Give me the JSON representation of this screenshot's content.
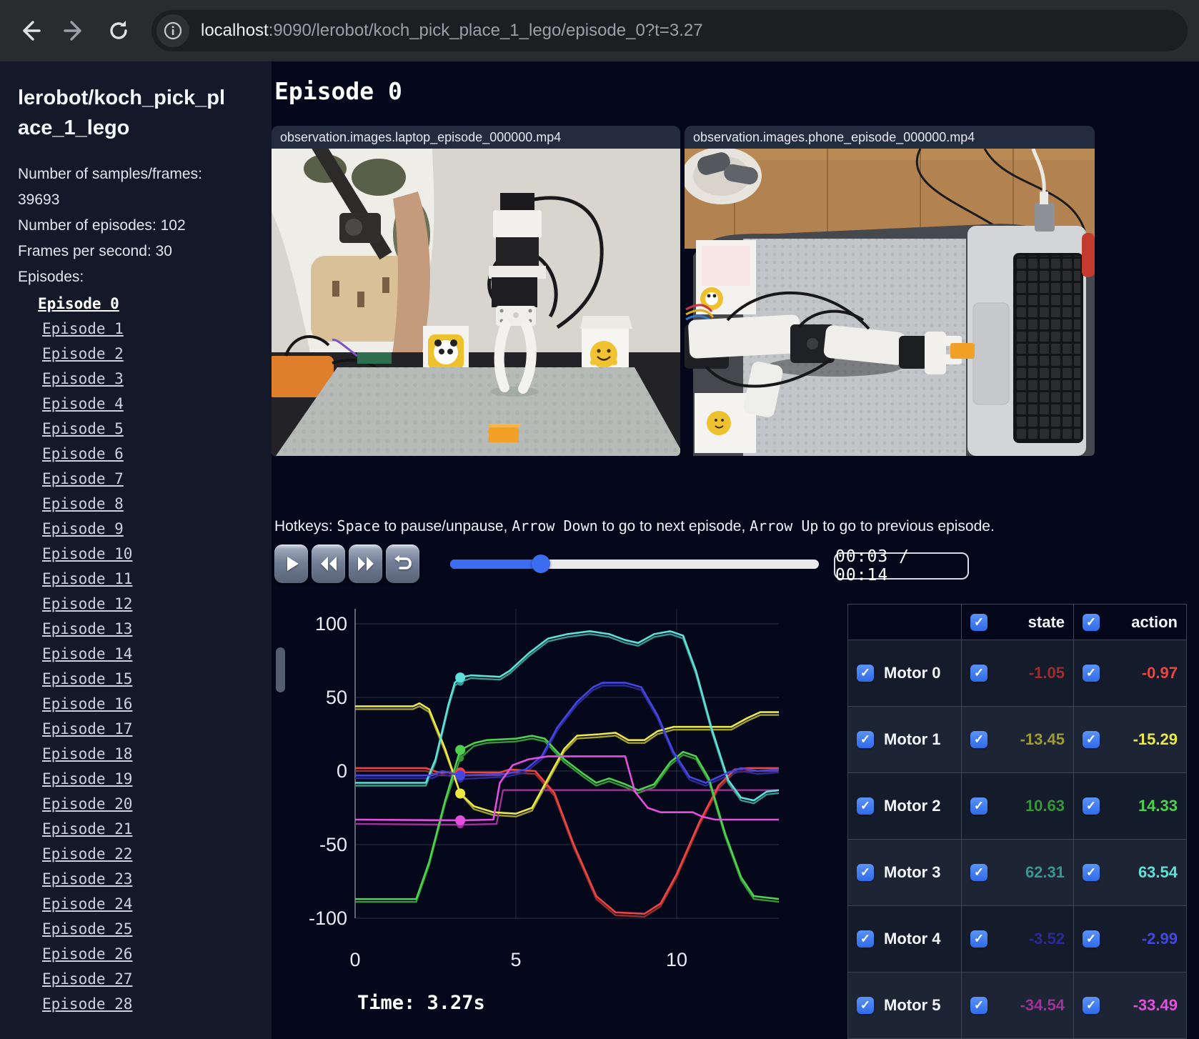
{
  "browser": {
    "url_host": "localhost",
    "url_rest": ":9090/lerobot/koch_pick_place_1_lego/episode_0?t=3.27"
  },
  "sidebar": {
    "title": "lerobot/koch_pick_place_1_lego",
    "info_lines": [
      "Number of samples/frames: 39693",
      "Number of episodes: 102",
      "Frames per second: 30",
      "Episodes:"
    ],
    "active_episode": 0,
    "episodes": [
      "Episode 0",
      "Episode 1",
      "Episode 2",
      "Episode 3",
      "Episode 4",
      "Episode 5",
      "Episode 6",
      "Episode 7",
      "Episode 8",
      "Episode 9",
      "Episode 10",
      "Episode 11",
      "Episode 12",
      "Episode 13",
      "Episode 14",
      "Episode 15",
      "Episode 16",
      "Episode 17",
      "Episode 18",
      "Episode 19",
      "Episode 20",
      "Episode 21",
      "Episode 22",
      "Episode 23",
      "Episode 24",
      "Episode 25",
      "Episode 26",
      "Episode 27",
      "Episode 28"
    ]
  },
  "main": {
    "heading": "Episode 0",
    "videos": [
      {
        "caption": "observation.images.laptop_episode_000000.mp4"
      },
      {
        "caption": "observation.images.phone_episode_000000.mp4"
      }
    ],
    "hotkeys_segments": [
      {
        "text": "Hotkeys: ",
        "mono": false
      },
      {
        "text": "Space",
        "mono": true
      },
      {
        "text": " to pause/unpause, ",
        "mono": false
      },
      {
        "text": "Arrow Down",
        "mono": true
      },
      {
        "text": " to go to next episode, ",
        "mono": false
      },
      {
        "text": "Arrow Up",
        "mono": true
      },
      {
        "text": " to go to previous episode.",
        "mono": false
      }
    ],
    "time_display": "00:03 / 00:14",
    "current_time_label": "Time: 3.27s"
  },
  "table": {
    "headers": [
      "state",
      "action"
    ],
    "rows": [
      {
        "name": "Motor 0",
        "state": "-1.05",
        "action": "-0.97",
        "state_color": "#9c2e2e",
        "action_color": "#ee4444"
      },
      {
        "name": "Motor 1",
        "state": "-13.45",
        "action": "-15.29",
        "state_color": "#a09d30",
        "action_color": "#ece944"
      },
      {
        "name": "Motor 2",
        "state": "10.63",
        "action": "14.33",
        "state_color": "#379637",
        "action_color": "#4cd24c"
      },
      {
        "name": "Motor 3",
        "state": "62.31",
        "action": "63.54",
        "state_color": "#3a968f",
        "action_color": "#5fe0d8"
      },
      {
        "name": "Motor 4",
        "state": "-3.52",
        "action": "-2.99",
        "state_color": "#2b2b98",
        "action_color": "#4545e0"
      },
      {
        "name": "Motor 5",
        "state": "-34.54",
        "action": "-33.49",
        "state_color": "#9c3398",
        "action_color": "#e44fe0"
      }
    ]
  },
  "chart_data": {
    "type": "line",
    "title": "",
    "xlabel": "",
    "ylabel": "",
    "x_ticks": [
      0,
      5,
      10
    ],
    "y_ticks": [
      100,
      50,
      0,
      -50,
      -100
    ],
    "xlim": [
      0,
      13.2
    ],
    "ylim": [
      -100,
      100
    ],
    "grid": true,
    "legend_position": "none",
    "current_time": 3.27,
    "motors": [
      {
        "name": "Motor 0",
        "state_color": "#9c2e2e",
        "action_color": "#ee4444",
        "action_points": [
          [
            0,
            2
          ],
          [
            2.2,
            2
          ],
          [
            2.6,
            -1
          ],
          [
            3.27,
            -0.97
          ],
          [
            4.5,
            -1
          ],
          [
            4.8,
            1
          ],
          [
            5.6,
            0
          ],
          [
            6.2,
            -15
          ],
          [
            6.8,
            -50
          ],
          [
            7.5,
            -85
          ],
          [
            8.1,
            -96
          ],
          [
            9.0,
            -97
          ],
          [
            9.5,
            -90
          ],
          [
            10.0,
            -70
          ],
          [
            10.7,
            -35
          ],
          [
            11.3,
            -10
          ],
          [
            11.8,
            1
          ],
          [
            12.2,
            2
          ],
          [
            13.2,
            2
          ]
        ],
        "state_points": [
          [
            0,
            2
          ],
          [
            2.2,
            2
          ],
          [
            2.6,
            -1
          ],
          [
            3.27,
            -1.05
          ],
          [
            4.5,
            -1
          ],
          [
            4.8,
            1
          ],
          [
            5.6,
            0
          ],
          [
            6.2,
            -15
          ],
          [
            6.8,
            -50
          ],
          [
            7.5,
            -85
          ],
          [
            8.1,
            -96
          ],
          [
            9.0,
            -97
          ],
          [
            9.5,
            -90
          ],
          [
            10.0,
            -70
          ],
          [
            10.7,
            -35
          ],
          [
            11.3,
            -10
          ],
          [
            11.8,
            1
          ],
          [
            12.2,
            2
          ],
          [
            13.2,
            2
          ]
        ]
      },
      {
        "name": "Motor 1",
        "state_color": "#a09d30",
        "action_color": "#ece944",
        "action_points": [
          [
            0,
            44
          ],
          [
            1.8,
            44
          ],
          [
            2.0,
            46
          ],
          [
            2.3,
            42
          ],
          [
            2.8,
            15
          ],
          [
            3.27,
            -15.29
          ],
          [
            3.7,
            -24
          ],
          [
            4.3,
            -28
          ],
          [
            5.0,
            -29
          ],
          [
            5.5,
            -25
          ],
          [
            6.0,
            -5
          ],
          [
            6.5,
            15
          ],
          [
            6.9,
            24
          ],
          [
            7.6,
            25
          ],
          [
            8.1,
            26
          ],
          [
            8.5,
            21
          ],
          [
            9.0,
            21
          ],
          [
            9.4,
            27
          ],
          [
            9.9,
            30
          ],
          [
            11.7,
            30
          ],
          [
            12.2,
            36
          ],
          [
            12.6,
            40
          ],
          [
            13.2,
            40
          ]
        ],
        "state_points": [
          [
            0,
            44
          ],
          [
            1.8,
            44
          ],
          [
            2.0,
            46
          ],
          [
            2.3,
            42
          ],
          [
            2.8,
            15
          ],
          [
            3.27,
            -13.45
          ],
          [
            3.7,
            -24
          ],
          [
            4.3,
            -28
          ],
          [
            5.0,
            -29
          ],
          [
            5.5,
            -25
          ],
          [
            6.0,
            -5
          ],
          [
            6.5,
            15
          ],
          [
            6.9,
            24
          ],
          [
            7.6,
            25
          ],
          [
            8.1,
            26
          ],
          [
            8.5,
            21
          ],
          [
            9.0,
            21
          ],
          [
            9.4,
            27
          ],
          [
            9.9,
            30
          ],
          [
            11.7,
            30
          ],
          [
            12.2,
            36
          ],
          [
            12.6,
            40
          ],
          [
            13.2,
            40
          ]
        ]
      },
      {
        "name": "Motor 2",
        "state_color": "#379637",
        "action_color": "#4cd24c",
        "action_points": [
          [
            0,
            -87
          ],
          [
            1.9,
            -87
          ],
          [
            2.3,
            -62
          ],
          [
            2.8,
            -20
          ],
          [
            3.27,
            14.33
          ],
          [
            3.7,
            19
          ],
          [
            4.1,
            21
          ],
          [
            5.0,
            22
          ],
          [
            5.5,
            24
          ],
          [
            5.9,
            22
          ],
          [
            6.5,
            8
          ],
          [
            7.1,
            -2
          ],
          [
            7.5,
            -8
          ],
          [
            7.9,
            -5
          ],
          [
            8.4,
            -9
          ],
          [
            8.8,
            -13
          ],
          [
            9.3,
            -9
          ],
          [
            9.8,
            6
          ],
          [
            10.2,
            13
          ],
          [
            10.6,
            10
          ],
          [
            11.0,
            -5
          ],
          [
            11.5,
            -42
          ],
          [
            12.0,
            -72
          ],
          [
            12.4,
            -85
          ],
          [
            13.2,
            -87
          ]
        ],
        "state_points": [
          [
            0,
            -87
          ],
          [
            1.9,
            -87
          ],
          [
            2.3,
            -62
          ],
          [
            2.8,
            -20
          ],
          [
            3.27,
            10.63
          ],
          [
            3.7,
            19
          ],
          [
            4.1,
            21
          ],
          [
            5.0,
            22
          ],
          [
            5.5,
            24
          ],
          [
            5.9,
            22
          ],
          [
            6.5,
            8
          ],
          [
            7.1,
            -2
          ],
          [
            7.5,
            -8
          ],
          [
            7.9,
            -5
          ],
          [
            8.4,
            -9
          ],
          [
            8.8,
            -13
          ],
          [
            9.3,
            -9
          ],
          [
            9.8,
            6
          ],
          [
            10.2,
            13
          ],
          [
            10.6,
            10
          ],
          [
            11.0,
            -5
          ],
          [
            11.5,
            -42
          ],
          [
            12.0,
            -72
          ],
          [
            12.4,
            -85
          ],
          [
            13.2,
            -87
          ]
        ]
      },
      {
        "name": "Motor 3",
        "state_color": "#3a968f",
        "action_color": "#5fe0d8",
        "action_points": [
          [
            0,
            -8
          ],
          [
            2.2,
            -8
          ],
          [
            2.5,
            8
          ],
          [
            2.9,
            45
          ],
          [
            3.1,
            60
          ],
          [
            3.27,
            63.54
          ],
          [
            3.6,
            65
          ],
          [
            4.5,
            64
          ],
          [
            4.8,
            68
          ],
          [
            5.4,
            80
          ],
          [
            6.0,
            90
          ],
          [
            6.6,
            93
          ],
          [
            7.3,
            95
          ],
          [
            7.9,
            93
          ],
          [
            8.4,
            89
          ],
          [
            8.8,
            87
          ],
          [
            9.3,
            93
          ],
          [
            9.8,
            95
          ],
          [
            10.2,
            92
          ],
          [
            10.6,
            68
          ],
          [
            11.1,
            28
          ],
          [
            11.6,
            -6
          ],
          [
            12.0,
            -18
          ],
          [
            12.4,
            -20
          ],
          [
            12.8,
            -14
          ],
          [
            13.2,
            -13
          ]
        ],
        "state_points": [
          [
            0,
            -8
          ],
          [
            2.2,
            -8
          ],
          [
            2.5,
            8
          ],
          [
            2.9,
            45
          ],
          [
            3.1,
            60
          ],
          [
            3.27,
            62.31
          ],
          [
            3.6,
            65
          ],
          [
            4.5,
            64
          ],
          [
            4.8,
            68
          ],
          [
            5.4,
            80
          ],
          [
            6.0,
            90
          ],
          [
            6.6,
            93
          ],
          [
            7.3,
            95
          ],
          [
            7.9,
            93
          ],
          [
            8.4,
            89
          ],
          [
            8.8,
            87
          ],
          [
            9.3,
            93
          ],
          [
            9.8,
            95
          ],
          [
            10.2,
            92
          ],
          [
            10.6,
            68
          ],
          [
            11.1,
            28
          ],
          [
            11.6,
            -6
          ],
          [
            12.0,
            -18
          ],
          [
            12.4,
            -20
          ],
          [
            12.8,
            -14
          ],
          [
            13.2,
            -13
          ]
        ]
      },
      {
        "name": "Motor 4",
        "state_color": "#2b2b98",
        "action_color": "#4545e0",
        "action_points": [
          [
            0,
            -3
          ],
          [
            2.4,
            -3
          ],
          [
            2.7,
            0
          ],
          [
            3.27,
            -2.99
          ],
          [
            4.7,
            -2
          ],
          [
            5.3,
            1
          ],
          [
            5.8,
            10
          ],
          [
            6.3,
            30
          ],
          [
            6.9,
            47
          ],
          [
            7.4,
            57
          ],
          [
            7.7,
            60
          ],
          [
            8.4,
            60
          ],
          [
            8.9,
            57
          ],
          [
            9.4,
            38
          ],
          [
            9.9,
            13
          ],
          [
            10.4,
            -4
          ],
          [
            10.9,
            -8
          ],
          [
            11.5,
            -2
          ],
          [
            12.0,
            2
          ],
          [
            12.5,
            0
          ],
          [
            13.2,
            1
          ]
        ],
        "state_points": [
          [
            0,
            -3
          ],
          [
            2.4,
            -3
          ],
          [
            2.7,
            0
          ],
          [
            3.27,
            -3.52
          ],
          [
            4.7,
            -2
          ],
          [
            5.3,
            1
          ],
          [
            5.8,
            10
          ],
          [
            6.3,
            30
          ],
          [
            6.9,
            47
          ],
          [
            7.4,
            57
          ],
          [
            7.7,
            60
          ],
          [
            8.4,
            60
          ],
          [
            8.9,
            57
          ],
          [
            9.4,
            38
          ],
          [
            9.9,
            13
          ],
          [
            10.4,
            -4
          ],
          [
            10.9,
            -8
          ],
          [
            11.5,
            -2
          ],
          [
            12.0,
            2
          ],
          [
            12.5,
            0
          ],
          [
            13.2,
            1
          ]
        ]
      },
      {
        "name": "Motor 5",
        "state_color": "#9c3398",
        "action_color": "#e44fe0",
        "action_points": [
          [
            0,
            -33
          ],
          [
            3.27,
            -33.49
          ],
          [
            4.3,
            -33
          ],
          [
            4.5,
            -8
          ],
          [
            4.9,
            4
          ],
          [
            5.4,
            8
          ],
          [
            6.0,
            10
          ],
          [
            8.4,
            10
          ],
          [
            8.7,
            -14
          ],
          [
            9.1,
            -25
          ],
          [
            9.5,
            -28
          ],
          [
            10.5,
            -28
          ],
          [
            10.8,
            -31
          ],
          [
            11.2,
            -33
          ],
          [
            13.2,
            -33
          ]
        ],
        "state_points": [
          [
            0,
            -34
          ],
          [
            3.27,
            -34.54
          ],
          [
            4.4,
            -34
          ],
          [
            4.6,
            -11
          ],
          [
            13.2,
            -11
          ]
        ]
      }
    ]
  }
}
